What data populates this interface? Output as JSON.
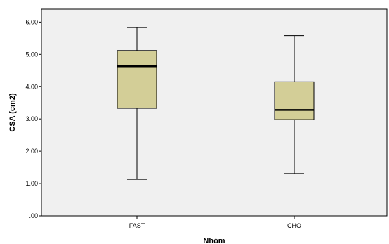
{
  "chart_data": {
    "type": "boxplot",
    "xlabel": "Nhóm",
    "ylabel": "CSA (cm2)",
    "categories": [
      "FAST",
      "CHO"
    ],
    "ylim": [
      0,
      6.4
    ],
    "yticks": [
      0,
      1,
      2,
      3,
      4,
      5,
      6
    ],
    "ytick_labels": [
      ".00",
      "1.00",
      "2.00",
      "3.00",
      "4.00",
      "5.00",
      "6.00"
    ],
    "boxes": [
      {
        "label": "FAST",
        "min": 1.13,
        "q1": 3.33,
        "median": 4.63,
        "q3": 5.12,
        "max": 5.83
      },
      {
        "label": "CHO",
        "min": 1.31,
        "q1": 2.98,
        "median": 3.28,
        "q3": 4.15,
        "max": 5.58
      }
    ],
    "grid": false,
    "colors": {
      "plot_background": "#f0f0f0",
      "box_fill": "#d3ce97",
      "line": "#000000"
    }
  }
}
